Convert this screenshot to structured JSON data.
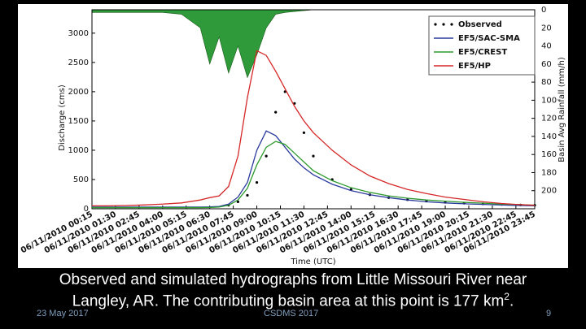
{
  "chart_data": {
    "type": "line",
    "x_label": "Time (UTC)",
    "y_label": "Discharge (cms)",
    "y2_label": "Basin Avg Rainfall (mm/h)",
    "x": [
      0.25,
      1,
      2,
      3,
      4,
      5,
      6,
      6.5,
      7,
      7.5,
      8,
      8.5,
      9,
      9.5,
      10,
      10.5,
      11,
      11.5,
      12,
      13,
      14,
      15,
      16,
      17,
      18,
      19,
      20,
      21,
      22,
      23,
      23.75
    ],
    "series": [
      {
        "name": "Observed",
        "style": "dots",
        "color": "#000000",
        "values": [
          null,
          null,
          null,
          null,
          null,
          null,
          null,
          null,
          null,
          60,
          120,
          230,
          450,
          900,
          1650,
          2000,
          1800,
          1300,
          900,
          500,
          330,
          240,
          190,
          155,
          130,
          110,
          95,
          85,
          75,
          65,
          60
        ]
      },
      {
        "name": "EF5/SAC-SMA",
        "style": "line",
        "color": "#2b3a9e",
        "values": [
          30,
          30,
          30,
          30,
          30,
          30,
          30,
          32,
          40,
          80,
          200,
          450,
          1000,
          1330,
          1250,
          1050,
          850,
          700,
          580,
          420,
          310,
          240,
          190,
          150,
          120,
          100,
          85,
          75,
          65,
          55,
          50
        ]
      },
      {
        "name": "EF5/CREST",
        "style": "line",
        "color": "#2e9a2e",
        "values": [
          20,
          20,
          20,
          20,
          20,
          20,
          20,
          22,
          30,
          60,
          150,
          350,
          750,
          1050,
          1150,
          1100,
          950,
          800,
          650,
          480,
          360,
          280,
          220,
          180,
          150,
          130,
          110,
          95,
          80,
          70,
          60
        ]
      },
      {
        "name": "EF5/HP",
        "style": "line",
        "color": "#d62728",
        "values": [
          50,
          50,
          55,
          65,
          80,
          100,
          150,
          190,
          220,
          380,
          900,
          1900,
          2700,
          2620,
          2350,
          2050,
          1750,
          1500,
          1300,
          1000,
          750,
          560,
          430,
          330,
          260,
          200,
          160,
          120,
          90,
          70,
          60
        ]
      }
    ],
    "rainfall": {
      "color": "#2f9a3a",
      "axis": "y2",
      "values": [
        3,
        3,
        3,
        3,
        3,
        5,
        20,
        60,
        30,
        70,
        40,
        75,
        50,
        20,
        5,
        3,
        2,
        1,
        0,
        0,
        0,
        0,
        0,
        0,
        0,
        0,
        0,
        0,
        0,
        0,
        0
      ]
    },
    "xlim": [
      0.25,
      23.75
    ],
    "xticks": [
      {
        "value": 0.25,
        "label": "06/11/2010 00:15"
      },
      {
        "value": 1.5,
        "label": "06/11/2010 01:30"
      },
      {
        "value": 2.75,
        "label": "06/11/2010 02:45"
      },
      {
        "value": 4,
        "label": "06/11/2010 04:00"
      },
      {
        "value": 5.25,
        "label": "06/11/2010 05:15"
      },
      {
        "value": 6.5,
        "label": "06/11/2010 06:30"
      },
      {
        "value": 7.75,
        "label": "06/11/2010 07:45"
      },
      {
        "value": 9,
        "label": "06/11/2010 09:00"
      },
      {
        "value": 10.25,
        "label": "06/11/2010 10:15"
      },
      {
        "value": 11.5,
        "label": "06/11/2010 11:30"
      },
      {
        "value": 12.75,
        "label": "06/11/2010 12:45"
      },
      {
        "value": 14,
        "label": "06/11/2010 14:00"
      },
      {
        "value": 15.25,
        "label": "06/11/2010 15:15"
      },
      {
        "value": 16.5,
        "label": "06/11/2010 16:30"
      },
      {
        "value": 17.75,
        "label": "06/11/2010 17:45"
      },
      {
        "value": 19,
        "label": "06/11/2010 19:00"
      },
      {
        "value": 20.25,
        "label": "06/11/2010 20:15"
      },
      {
        "value": 21.5,
        "label": "06/11/2010 21:30"
      },
      {
        "value": 22.75,
        "label": "06/11/2010 22:45"
      },
      {
        "value": 23.75,
        "label": "06/11/2010 23:45"
      }
    ],
    "ylim": [
      0,
      3400
    ],
    "yticks": [
      0,
      500,
      1000,
      1500,
      2000,
      2500,
      3000
    ],
    "y2lim": [
      0,
      220
    ],
    "y2_inverted": true,
    "y2ticks": [
      0,
      20,
      40,
      60,
      80,
      100,
      120,
      140,
      160,
      180,
      200
    ],
    "grid": false,
    "legend": "upper right"
  },
  "caption": {
    "line1": "Observed and simulated hydrographs from Little Missouri River near",
    "line2": "Langley, AR. The contributing basin area at this point is 177 km",
    "sup": "2",
    "end": "."
  },
  "footer": {
    "date": "23 May 2017",
    "event": "CSDMS 2017",
    "page": "9"
  }
}
